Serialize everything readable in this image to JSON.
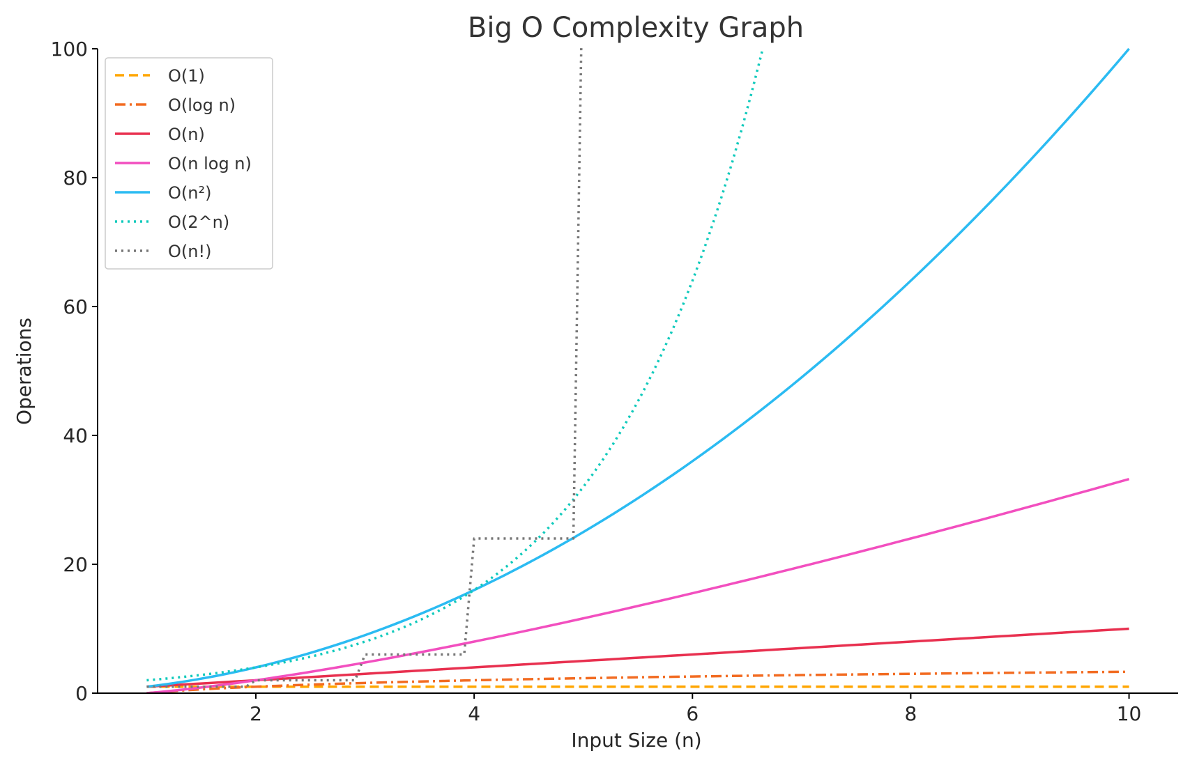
{
  "chart_data": {
    "type": "line",
    "title": "Big O Complexity Graph",
    "xlabel": "Input Size (n)",
    "ylabel": "Operations",
    "xlim": [
      0.55,
      10.45
    ],
    "ylim": [
      0,
      100
    ],
    "x_range": [
      1,
      10
    ],
    "x_ticks": [
      2,
      4,
      6,
      8,
      10
    ],
    "y_ticks": [
      0,
      20,
      40,
      60,
      80,
      100
    ],
    "grid": false,
    "legend_position": "top-left",
    "series": [
      {
        "name": "O(1)",
        "formula": "1",
        "color": "#FFA500",
        "style": "dashed"
      },
      {
        "name": "O(log n)",
        "formula": "log2(n)",
        "color": "#F26B21",
        "style": "dashdot"
      },
      {
        "name": "O(n)",
        "formula": "n",
        "color": "#E8304F",
        "style": "solid"
      },
      {
        "name": "O(n log n)",
        "formula": "n*log2(n)",
        "color": "#F24FBF",
        "style": "solid"
      },
      {
        "name": "O(n²)",
        "formula": "n^2",
        "color": "#2BBBF2",
        "style": "solid"
      },
      {
        "name": "O(2^n)",
        "formula": "2^n",
        "color": "#10CABC",
        "style": "dotted"
      },
      {
        "name": "O(n!)",
        "formula": "floor(n)!",
        "color": "#777777",
        "style": "dotted"
      }
    ]
  }
}
